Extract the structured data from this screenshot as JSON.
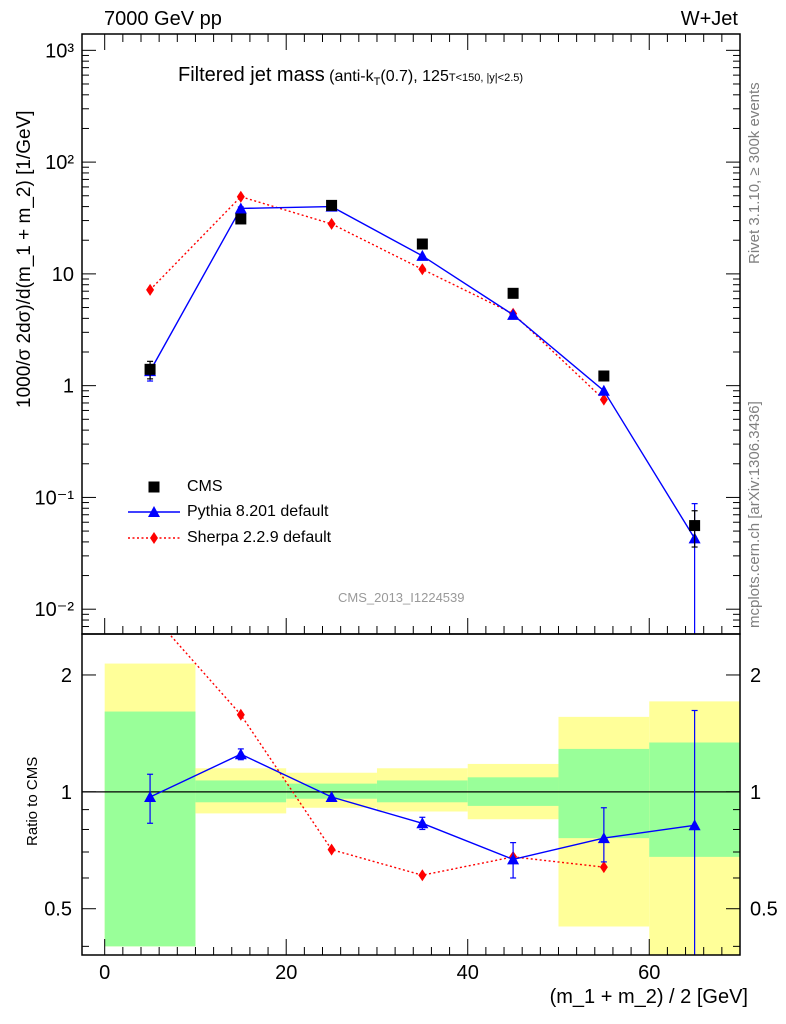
{
  "header": {
    "left": "7000 GeV pp",
    "right": "W+Jet"
  },
  "plot_title": {
    "main": "Filtered jet mass",
    "sub": "(anti-kT(0.7), 125<pT<150, |y|<2.5)"
  },
  "side_labels": {
    "rivet": "Rivet 3.1.10, ≥ 300k events",
    "mcplots": "mcplots.cern.ch [arXiv:1306.3436]"
  },
  "watermark": "CMS_2013_I1224539",
  "chart_data": [
    {
      "type": "line",
      "panel": "main",
      "ylabel": "1000/σ 2dσ)/d(m_1 + m_2) [1/GeV]",
      "yscale": "log",
      "xlim": [
        -2.5,
        70
      ],
      "ylim": [
        0.006,
        1400
      ],
      "y_ticks": [
        "10⁻²",
        "10⁻¹",
        "1",
        "10",
        "10²",
        "10³"
      ],
      "legend_position": "bottom-left",
      "bins": [
        [
          0,
          10
        ],
        [
          10,
          20
        ],
        [
          20,
          30
        ],
        [
          30,
          40
        ],
        [
          40,
          50
        ],
        [
          50,
          60
        ],
        [
          60,
          70
        ]
      ],
      "x": [
        5,
        15,
        25,
        35,
        45,
        55,
        65
      ],
      "series": [
        {
          "name": "CMS",
          "style": "black-square",
          "color": "#000000",
          "values": [
            1.4,
            31,
            41,
            18.5,
            6.7,
            1.22,
            0.056
          ],
          "err_low": [
            0.25,
            1.0,
            1.0,
            0.6,
            0.3,
            0.06,
            0.02
          ],
          "err_high": [
            0.25,
            1.0,
            1.0,
            0.6,
            0.3,
            0.06,
            0.02
          ]
        },
        {
          "name": "Pythia 8.201 default",
          "style": "blue-triangle-line",
          "color": "#0000ff",
          "values": [
            1.35,
            38.5,
            40,
            14.5,
            4.3,
            0.9,
            0.043
          ],
          "err_low": [
            0.25,
            1.2,
            0,
            0,
            0,
            0,
            0.038
          ],
          "err_high": [
            0.15,
            1.2,
            0,
            0,
            0,
            0,
            0.045
          ]
        },
        {
          "name": "Sherpa 2.2.9 default",
          "style": "red-diamond-dotted",
          "color": "#ff0000",
          "values": [
            7.2,
            49,
            28,
            11,
            4.4,
            0.75,
            null
          ]
        }
      ]
    },
    {
      "type": "line",
      "panel": "ratio",
      "xlabel": "(m_1 + m_2) / 2 [GeV]",
      "ylabel": "Ratio to CMS",
      "yscale": "log",
      "xlim": [
        -2.5,
        70
      ],
      "ylim": [
        0.38,
        2.55
      ],
      "x_ticks": [
        0,
        20,
        40,
        60
      ],
      "y_ticks": [
        0.5,
        1,
        2
      ],
      "reference_line": 1,
      "bands": {
        "bins": [
          [
            0,
            10
          ],
          [
            10,
            20
          ],
          [
            20,
            30
          ],
          [
            30,
            40
          ],
          [
            40,
            50
          ],
          [
            50,
            60
          ],
          [
            60,
            70
          ]
        ],
        "green_low": [
          0.4,
          0.94,
          0.96,
          0.94,
          0.92,
          0.76,
          0.68
        ],
        "green_high": [
          1.61,
          1.07,
          1.05,
          1.07,
          1.09,
          1.29,
          1.34
        ],
        "yellow_low": [
          0.4,
          0.88,
          0.91,
          0.89,
          0.85,
          0.45,
          0.38
        ],
        "yellow_high": [
          2.14,
          1.15,
          1.12,
          1.15,
          1.18,
          1.56,
          1.71
        ]
      },
      "x": [
        5,
        15,
        25,
        35,
        45,
        55,
        65
      ],
      "series": [
        {
          "name": "Pythia 8.201 default",
          "color": "#0000ff",
          "values": [
            0.97,
            1.25,
            0.97,
            0.83,
            0.67,
            0.76,
            0.82
          ],
          "err_low": [
            0.14,
            0.04,
            0,
            0.03,
            0.07,
            0.1,
            0.82
          ],
          "err_high": [
            0.14,
            0.04,
            0,
            0.03,
            0.07,
            0.15,
            0.8
          ]
        },
        {
          "name": "Sherpa 2.2.9 default",
          "color": "#ff0000",
          "values": [
            2.9,
            1.58,
            0.71,
            0.61,
            0.68,
            0.64,
            null
          ]
        }
      ]
    }
  ]
}
